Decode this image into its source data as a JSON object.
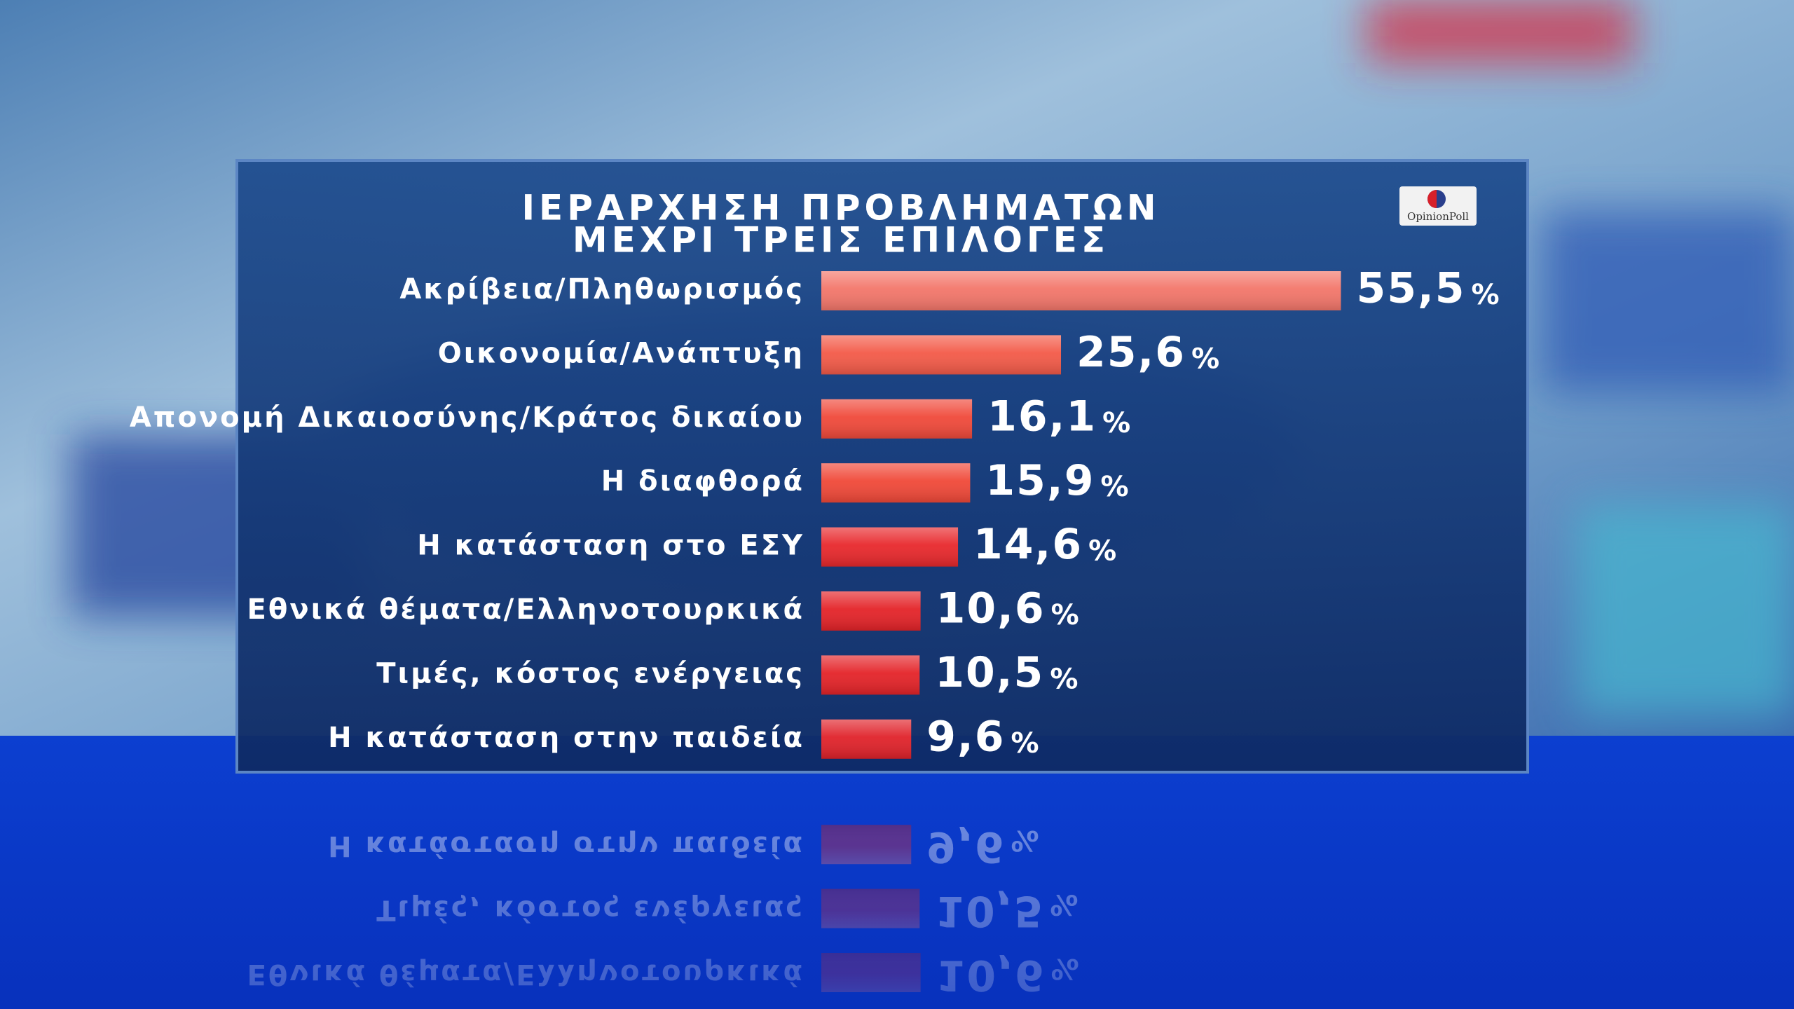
{
  "chart_data": {
    "type": "bar",
    "orientation": "horizontal",
    "title": "ΙΕΡΑΡΧΗΣΗ ΠΡΟΒΛΗΜΑΤΩΝ",
    "subtitle": "ΜΕΧΡΙ ΤΡΕΙΣ ΕΠΙΛΟΓΕΣ",
    "logo": "OpinionPoll",
    "categories": [
      "Ακρίβεια/Πληθωρισμός",
      "Οικονομία/Ανάπτυξη",
      "Απονομή Δικαιοσύνης/Κράτος δικαίου",
      "Η διαφθορά",
      "Η κατάσταση στο ΕΣΥ",
      "Εθνικά θέματα/Ελληνοτουρκικά",
      "Τιμές, κόστος ενέργειας",
      "Η κατάσταση στην παιδεία"
    ],
    "values": [
      55.5,
      25.6,
      16.1,
      15.9,
      14.6,
      10.6,
      10.5,
      9.6
    ],
    "value_labels": [
      "55,5",
      "25,6",
      "16,1",
      "15,9",
      "14,6",
      "10,6",
      "10,5",
      "9,6"
    ],
    "value_suffix": "%",
    "colors": [
      "#f3766a",
      "#f35a48",
      "#f0493a",
      "#f04838",
      "#e8282c",
      "#e42328",
      "#e42328",
      "#e0222a"
    ]
  }
}
